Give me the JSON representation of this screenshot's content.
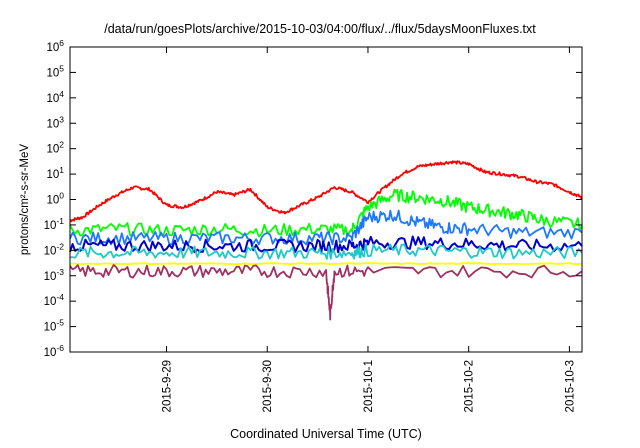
{
  "chart_data": {
    "type": "line",
    "title": "/data/run/goesPlots/archive/2015-10-03/04:00/flux/../flux/5daysMoonFluxes.txt",
    "xlabel": "Coordinated Universal Time (UTC)",
    "ylabel": "protons/cm²-s-sr-MeV",
    "y_scale": "log",
    "ylim": [
      1e-06,
      1000000.0
    ],
    "y_ticks": [
      {
        "value": -6,
        "label_base": "10",
        "label_exp": "-6"
      },
      {
        "value": -5,
        "label_base": "10",
        "label_exp": "-5"
      },
      {
        "value": -4,
        "label_base": "10",
        "label_exp": "-4"
      },
      {
        "value": -3,
        "label_base": "10",
        "label_exp": "-3"
      },
      {
        "value": -2,
        "label_base": "10",
        "label_exp": "-2"
      },
      {
        "value": -1,
        "label_base": "10",
        "label_exp": "-1"
      },
      {
        "value": 0,
        "label_base": "10",
        "label_exp": "0"
      },
      {
        "value": 1,
        "label_base": "10",
        "label_exp": "1"
      },
      {
        "value": 2,
        "label_base": "10",
        "label_exp": "2"
      },
      {
        "value": 3,
        "label_base": "10",
        "label_exp": "3"
      },
      {
        "value": 4,
        "label_base": "10",
        "label_exp": "4"
      },
      {
        "value": 5,
        "label_base": "10",
        "label_exp": "5"
      },
      {
        "value": 6,
        "label_base": "10",
        "label_exp": "6"
      }
    ],
    "xlim": [
      "2015-09-28 01:00",
      "2015-10-03 03:00"
    ],
    "x_ticks": [
      {
        "x": "2015-09-29 00:00",
        "label": "2015-9-29"
      },
      {
        "x": "2015-09-30 00:00",
        "label": "2015-9-30"
      },
      {
        "x": "2015-10-01 00:00",
        "label": "2015-10-1"
      },
      {
        "x": "2015-10-02 00:00",
        "label": "2015-10-2"
      },
      {
        "x": "2015-10-03 00:00",
        "label": "2015-10-3"
      }
    ],
    "grid": false,
    "legend": "none",
    "series": [
      {
        "color": "#ff0000",
        "x": [
          "2015-09-28 01:00",
          "2015-09-28 04:00",
          "2015-09-28 08:00",
          "2015-09-28 12:00",
          "2015-09-28 16:00",
          "2015-09-28 20:00",
          "2015-09-29 00:00",
          "2015-09-29 04:00",
          "2015-09-29 08:00",
          "2015-09-29 12:00",
          "2015-09-29 16:00",
          "2015-09-29 20:00",
          "2015-09-30 00:00",
          "2015-09-30 04:00",
          "2015-09-30 08:00",
          "2015-09-30 12:00",
          "2015-09-30 16:00",
          "2015-09-30 20:00",
          "2015-10-01 00:00",
          "2015-10-01 04:00",
          "2015-10-01 08:00",
          "2015-10-01 12:00",
          "2015-10-01 16:00",
          "2015-10-01 20:00",
          "2015-10-02 00:00",
          "2015-10-02 04:00",
          "2015-10-02 08:00",
          "2015-10-02 12:00",
          "2015-10-02 16:00",
          "2015-10-02 20:00",
          "2015-10-03 00:00",
          "2015-10-03 03:00"
        ],
        "y": [
          0.15,
          0.2,
          0.6,
          1.5,
          3,
          2.5,
          0.6,
          0.5,
          0.9,
          2,
          1.5,
          2.5,
          0.5,
          0.3,
          0.6,
          1.2,
          3,
          2,
          0.8,
          3,
          10,
          20,
          25,
          30,
          25,
          12,
          10,
          8,
          5,
          4,
          2,
          1.2
        ]
      },
      {
        "color": "#00ff00",
        "x": [
          "2015-09-28 01:00",
          "2015-09-28 12:00",
          "2015-09-29 00:00",
          "2015-09-29 12:00",
          "2015-09-30 00:00",
          "2015-09-30 12:00",
          "2015-09-30 20:00",
          "2015-10-01 00:00",
          "2015-10-01 06:00",
          "2015-10-01 12:00",
          "2015-10-01 18:00",
          "2015-10-02 00:00",
          "2015-10-02 06:00",
          "2015-10-02 12:00",
          "2015-10-02 18:00",
          "2015-10-03 03:00"
        ],
        "y": [
          0.06,
          0.07,
          0.06,
          0.07,
          0.06,
          0.07,
          0.06,
          0.5,
          1.5,
          1.2,
          0.9,
          0.5,
          0.35,
          0.25,
          0.15,
          0.1
        ]
      },
      {
        "color": "#1e78ff",
        "x": [
          "2015-09-28 01:00",
          "2015-09-28 12:00",
          "2015-09-29 00:00",
          "2015-09-29 12:00",
          "2015-09-30 00:00",
          "2015-09-30 12:00",
          "2015-09-30 20:00",
          "2015-10-01 00:00",
          "2015-10-01 06:00",
          "2015-10-01 12:00",
          "2015-10-01 18:00",
          "2015-10-02 00:00",
          "2015-10-02 12:00",
          "2015-10-03 03:00"
        ],
        "y": [
          0.03,
          0.03,
          0.03,
          0.03,
          0.03,
          0.03,
          0.03,
          0.2,
          0.25,
          0.12,
          0.08,
          0.07,
          0.05,
          0.05
        ]
      },
      {
        "color": "#0000c8",
        "x": [
          "2015-09-28 01:00",
          "2015-09-28 12:00",
          "2015-09-29 00:00",
          "2015-09-29 12:00",
          "2015-09-30 00:00",
          "2015-09-30 12:00",
          "2015-09-30 20:00",
          "2015-10-01 00:00",
          "2015-10-01 12:00",
          "2015-10-02 00:00",
          "2015-10-02 12:00",
          "2015-10-03 03:00"
        ],
        "y": [
          0.015,
          0.015,
          0.015,
          0.015,
          0.015,
          0.015,
          0.015,
          0.02,
          0.02,
          0.018,
          0.015,
          0.015
        ]
      },
      {
        "color": "#20c8c8",
        "x": [
          "2015-09-28 01:00",
          "2015-09-28 12:00",
          "2015-09-29 00:00",
          "2015-09-29 12:00",
          "2015-09-30 00:00",
          "2015-09-30 12:00",
          "2015-09-30 20:00",
          "2015-10-01 00:00",
          "2015-10-01 12:00",
          "2015-10-02 00:00",
          "2015-10-02 12:00",
          "2015-10-03 03:00"
        ],
        "y": [
          0.008,
          0.008,
          0.008,
          0.008,
          0.008,
          0.008,
          0.008,
          0.01,
          0.01,
          0.009,
          0.008,
          0.008
        ]
      },
      {
        "color": "#ffff00",
        "x": [
          "2015-09-28 01:00",
          "2015-09-29 00:00",
          "2015-09-30 00:00",
          "2015-10-01 00:00",
          "2015-10-02 00:00",
          "2015-10-03 03:00"
        ],
        "y": [
          0.003,
          0.003,
          0.003,
          0.003,
          0.003,
          0.003
        ]
      },
      {
        "color": "#a03060",
        "x": [
          "2015-09-28 01:00",
          "2015-09-28 12:00",
          "2015-09-29 00:00",
          "2015-09-29 12:00",
          "2015-09-30 00:00",
          "2015-09-30 14:00",
          "2015-09-30 15:00",
          "2015-09-30 16:00",
          "2015-10-01 00:00",
          "2015-10-02 00:00",
          "2015-10-03 03:00"
        ],
        "y": [
          0.0015,
          0.0015,
          0.0015,
          0.0015,
          0.0015,
          0.0015,
          3e-05,
          0.0015,
          0.0015,
          0.0015,
          0.0015
        ]
      }
    ]
  }
}
